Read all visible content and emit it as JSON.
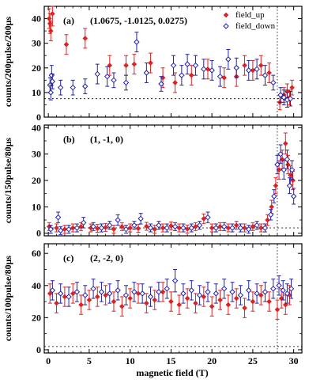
{
  "chart_data": [
    {
      "type": "scatter",
      "panel_label": "(a)",
      "annotation": "(1.0675, -1.0125, 0.0275)",
      "xlabel": "magnetic field (T)",
      "ylabel": "counts/200pulse/200μs",
      "xlim": [
        -0.5,
        31
      ],
      "ylim": [
        0,
        45
      ],
      "yticks": [
        0,
        10,
        20,
        30,
        40
      ],
      "xticks": [
        0,
        5,
        10,
        15,
        20,
        25,
        30
      ],
      "legend": {
        "placement": "top-right",
        "entries": [
          "field_up",
          "field_down"
        ]
      },
      "vline_x": 28,
      "hline_y": 7.5,
      "series": [
        {
          "name": "field_up",
          "color": "#dd2222",
          "marker": "filled-diamond",
          "points": [
            [
              0.1,
              40,
              4
            ],
            [
              0.2,
              38,
              4
            ],
            [
              0.3,
              35,
              4
            ],
            [
              0.5,
              42,
              5
            ],
            [
              2.2,
              29.5,
              4
            ],
            [
              4.5,
              32,
              4
            ],
            [
              7.5,
              21,
              4
            ],
            [
              9.5,
              21,
              4
            ],
            [
              10.5,
              21.5,
              4
            ],
            [
              12.5,
              22,
              4
            ],
            [
              14,
              16,
              4
            ],
            [
              15.5,
              14,
              4
            ],
            [
              17.5,
              17,
              4
            ],
            [
              19.5,
              19.5,
              4
            ],
            [
              21.5,
              16,
              4
            ],
            [
              23,
              16.5,
              4
            ],
            [
              24,
              21,
              4
            ],
            [
              25,
              19,
              4
            ],
            [
              26,
              21,
              4
            ],
            [
              27,
              18,
              4
            ],
            [
              28.3,
              6,
              3
            ],
            [
              28.8,
              9,
              3
            ],
            [
              29.2,
              10.5,
              3
            ],
            [
              29.5,
              8,
              3
            ],
            [
              29.8,
              12,
              3
            ]
          ]
        },
        {
          "name": "field_down",
          "color": "#2222aa",
          "marker": "open-diamond",
          "points": [
            [
              0.2,
              13,
              3
            ],
            [
              0.3,
              10,
              3
            ],
            [
              0.4,
              17,
              4
            ],
            [
              0.5,
              14.5,
              3
            ],
            [
              1.5,
              12,
              3
            ],
            [
              3,
              12,
              3
            ],
            [
              4.5,
              12.5,
              3
            ],
            [
              6,
              17.5,
              4
            ],
            [
              7.2,
              16.5,
              4
            ],
            [
              8,
              15,
              3
            ],
            [
              9.5,
              14,
              3
            ],
            [
              10.8,
              30.5,
              4
            ],
            [
              12,
              18,
              4
            ],
            [
              13.8,
              13.5,
              3
            ],
            [
              15.3,
              21,
              4
            ],
            [
              16.3,
              17,
              4
            ],
            [
              17,
              21.5,
              4
            ],
            [
              18,
              21,
              4
            ],
            [
              19,
              19.5,
              4
            ],
            [
              20,
              19,
              4
            ],
            [
              21,
              16.5,
              4
            ],
            [
              22,
              23.5,
              4
            ],
            [
              23,
              20,
              4
            ],
            [
              24.5,
              19,
              4
            ],
            [
              25.5,
              19.5,
              4
            ],
            [
              26.5,
              17,
              4
            ],
            [
              27.5,
              14,
              3
            ],
            [
              28.4,
              9,
              3
            ],
            [
              28.8,
              8,
              3
            ],
            [
              29.2,
              7,
              3
            ],
            [
              29.6,
              7.5,
              3
            ]
          ]
        }
      ]
    },
    {
      "type": "scatter",
      "panel_label": "(b)",
      "annotation": "(1, -1, 0)",
      "xlabel": "magnetic field (T)",
      "ylabel": "counts/150pulse/80μs",
      "xlim": [
        -0.5,
        31
      ],
      "ylim": [
        -1,
        41
      ],
      "yticks": [
        0,
        10,
        20,
        30,
        40
      ],
      "xticks": [
        0,
        5,
        10,
        15,
        20,
        25,
        30
      ],
      "vline_x": 28,
      "hline_y": 2,
      "series": [
        {
          "name": "field_up",
          "color": "#dd2222",
          "marker": "filled-diamond",
          "points": [
            [
              0.1,
              2.5,
              1.5
            ],
            [
              1,
              2,
              1.5
            ],
            [
              2,
              1.5,
              1.5
            ],
            [
              3,
              2,
              1.5
            ],
            [
              4,
              2.5,
              1.5
            ],
            [
              5.2,
              2,
              1.5
            ],
            [
              6,
              1.8,
              1.5
            ],
            [
              7,
              2.2,
              1.5
            ],
            [
              8,
              1.5,
              1.5
            ],
            [
              9,
              2.5,
              1.5
            ],
            [
              10,
              2,
              1.5
            ],
            [
              11,
              1.8,
              1.5
            ],
            [
              12,
              2.6,
              1.5
            ],
            [
              13,
              1.5,
              1.5
            ],
            [
              14,
              2,
              1.5
            ],
            [
              15,
              2.8,
              1.5
            ],
            [
              16,
              2,
              1.5
            ],
            [
              17,
              1.6,
              1.5
            ],
            [
              18,
              2.5,
              1.5
            ],
            [
              19,
              5.5,
              1.8
            ],
            [
              20,
              2,
              1.5
            ],
            [
              21,
              2.5,
              1.5
            ],
            [
              22,
              2,
              1.5
            ],
            [
              23,
              3,
              1.5
            ],
            [
              24,
              2,
              1.5
            ],
            [
              25,
              2.5,
              1.5
            ],
            [
              26,
              2,
              1.5
            ],
            [
              26.8,
              5,
              2
            ],
            [
              27.3,
              10,
              2.5
            ],
            [
              27.8,
              18,
              3
            ],
            [
              28.2,
              24,
              3.5
            ],
            [
              28.6,
              28,
              3.5
            ],
            [
              29,
              34,
              4
            ],
            [
              29.3,
              26,
              3.5
            ],
            [
              29.6,
              22,
              3.5
            ],
            [
              29.9,
              20,
              3.5
            ]
          ]
        },
        {
          "name": "field_down",
          "color": "#2222aa",
          "marker": "open-diamond",
          "points": [
            [
              0.3,
              1.5,
              1.5
            ],
            [
              1.2,
              6,
              2
            ],
            [
              1.5,
              1,
              1.5
            ],
            [
              2.5,
              1.5,
              1.5
            ],
            [
              3.5,
              2,
              1.5
            ],
            [
              4.3,
              4,
              2
            ],
            [
              5.5,
              2.5,
              1.5
            ],
            [
              6.5,
              2,
              1.5
            ],
            [
              7.5,
              3,
              1.5
            ],
            [
              8.5,
              5,
              2
            ],
            [
              9.5,
              1.5,
              1.5
            ],
            [
              10.5,
              3,
              1.5
            ],
            [
              11.3,
              5.5,
              2
            ],
            [
              12.5,
              2,
              1.5
            ],
            [
              13.5,
              3,
              1.5
            ],
            [
              14.5,
              2,
              1.5
            ],
            [
              15.5,
              2.5,
              1.5
            ],
            [
              16.5,
              2,
              1.5
            ],
            [
              17.5,
              2,
              1.5
            ],
            [
              18.5,
              3,
              1.5
            ],
            [
              19.5,
              6,
              2
            ],
            [
              20.5,
              2,
              1.5
            ],
            [
              21.5,
              2.5,
              1.5
            ],
            [
              22.5,
              2,
              1.5
            ],
            [
              23.5,
              2,
              1.5
            ],
            [
              24.5,
              1.5,
              1.5
            ],
            [
              25.5,
              3,
              1.5
            ],
            [
              26.5,
              2,
              1.5
            ],
            [
              27.2,
              7,
              2
            ],
            [
              27.6,
              14,
              2.5
            ],
            [
              28,
              26,
              3.5
            ],
            [
              28.4,
              30,
              3.5
            ],
            [
              28.8,
              24,
              3.5
            ],
            [
              29.2,
              28,
              3.5
            ],
            [
              29.5,
              18,
              3
            ],
            [
              29.8,
              24,
              3.5
            ],
            [
              30,
              14,
              3
            ]
          ]
        }
      ]
    },
    {
      "type": "scatter",
      "panel_label": "(c)",
      "annotation": "(2, -2, 0)",
      "xlabel": "magnetic field (T)",
      "ylabel": "counts/100pulse/80μs",
      "xlim": [
        -0.5,
        31
      ],
      "ylim": [
        -2,
        66
      ],
      "yticks": [
        0,
        20,
        40,
        60
      ],
      "xticks": [
        0,
        5,
        10,
        15,
        20,
        25,
        30
      ],
      "vline_x": 28,
      "hline_y": 2,
      "series": [
        {
          "name": "field_up",
          "color": "#dd2222",
          "marker": "filled-diamond",
          "points": [
            [
              0.2,
              35,
              6
            ],
            [
              1,
              29,
              6
            ],
            [
              2,
              33,
              6
            ],
            [
              3,
              35,
              6
            ],
            [
              4,
              28,
              6
            ],
            [
              5,
              31,
              6
            ],
            [
              6,
              33,
              6
            ],
            [
              7,
              34,
              6
            ],
            [
              8,
              30,
              6
            ],
            [
              9,
              27,
              6
            ],
            [
              10,
              32,
              6
            ],
            [
              11,
              35,
              6
            ],
            [
              12,
              29,
              6
            ],
            [
              13,
              31,
              6
            ],
            [
              14,
              36,
              6
            ],
            [
              15,
              30,
              6
            ],
            [
              16,
              28,
              6
            ],
            [
              17,
              32,
              6
            ],
            [
              18,
              29,
              6
            ],
            [
              19,
              33,
              6
            ],
            [
              20,
              27,
              6
            ],
            [
              21,
              31,
              6
            ],
            [
              22,
              28,
              6
            ],
            [
              23,
              32,
              6
            ],
            [
              24,
              26,
              6
            ],
            [
              25,
              30,
              6
            ],
            [
              26,
              34,
              6
            ],
            [
              27,
              30,
              6
            ],
            [
              28,
              25,
              6
            ],
            [
              28.5,
              32,
              6
            ],
            [
              29,
              28,
              6
            ],
            [
              29.5,
              34,
              6
            ]
          ]
        },
        {
          "name": "field_down",
          "color": "#2222aa",
          "marker": "open-diamond",
          "points": [
            [
              0.5,
              37,
              6
            ],
            [
              1.5,
              35,
              6
            ],
            [
              2.5,
              33,
              6
            ],
            [
              3.5,
              36,
              6
            ],
            [
              4.5,
              34,
              6
            ],
            [
              5.5,
              38,
              6
            ],
            [
              6.5,
              36,
              6
            ],
            [
              7.5,
              35,
              6
            ],
            [
              8.5,
              37,
              6
            ],
            [
              9.5,
              34,
              6
            ],
            [
              10.5,
              36,
              6
            ],
            [
              11.5,
              35,
              6
            ],
            [
              12.5,
              33,
              6
            ],
            [
              13.5,
              36,
              6
            ],
            [
              14.5,
              38,
              6
            ],
            [
              15.5,
              43,
              7
            ],
            [
              16.5,
              35,
              6
            ],
            [
              17.5,
              37,
              6
            ],
            [
              18.5,
              34,
              6
            ],
            [
              19.5,
              36,
              6
            ],
            [
              20.5,
              35,
              6
            ],
            [
              21.5,
              38,
              6
            ],
            [
              22.5,
              36,
              6
            ],
            [
              23.5,
              34,
              6
            ],
            [
              24.5,
              37,
              6
            ],
            [
              25.5,
              35,
              6
            ],
            [
              26.5,
              36,
              6
            ],
            [
              27.5,
              38,
              6
            ],
            [
              28.2,
              40,
              6
            ],
            [
              28.7,
              37,
              6
            ],
            [
              29.2,
              35,
              6
            ],
            [
              29.7,
              38,
              6
            ]
          ]
        }
      ]
    }
  ]
}
